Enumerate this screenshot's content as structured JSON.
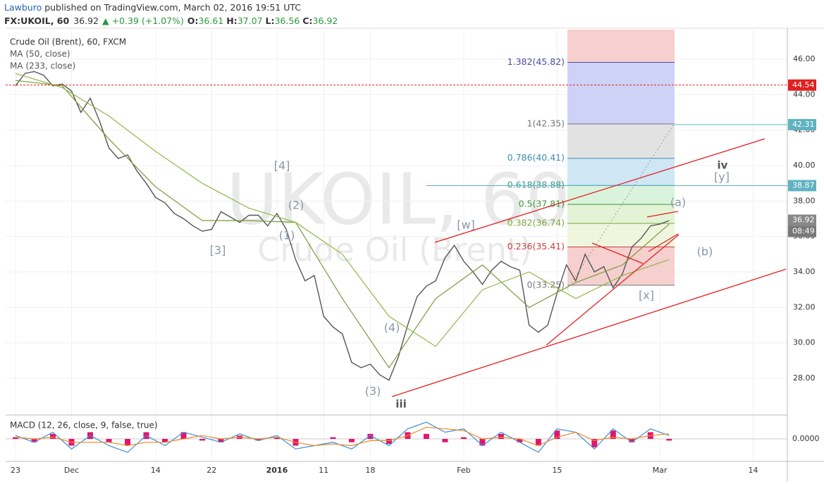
{
  "header": {
    "author": "Lawburo",
    "published": " published on TradingView.com, March 02, 2016 19:51 UTC",
    "symbol": "FX:UKOIL, 60",
    "last": "36.92",
    "change": "▲ +0.39 (+1.07%)",
    "open_label": "O:",
    "open": "36.61",
    "high_label": "H:",
    "high": "37.07",
    "low_label": "L:",
    "low": "36.56",
    "close_label": "C:",
    "close": "36.92"
  },
  "chart_data": [
    {
      "type": "line",
      "title": "Crude Oil (Brent), 60, FXCM",
      "watermark": "UKOIL, 60",
      "watermark_sub": "Crude Oil (Brent)",
      "x": [
        0,
        1,
        2,
        3,
        4,
        5,
        6,
        7,
        8,
        9,
        10,
        11,
        12,
        13,
        14,
        15,
        16,
        17,
        18,
        19,
        20,
        21,
        22,
        23,
        24,
        25,
        26,
        27,
        28,
        29,
        30,
        31,
        32,
        33,
        34,
        35,
        36,
        37,
        38,
        39,
        40,
        41,
        42,
        43,
        44,
        45,
        46,
        47,
        48,
        49,
        50,
        51,
        52,
        53,
        54,
        55,
        56,
        57,
        58,
        59,
        60,
        61,
        62,
        63,
        64,
        65,
        66,
        67,
        68,
        69,
        70
      ],
      "series": [
        {
          "color": "#555555",
          "values": [
            44.5,
            45.2,
            45.3,
            45.1,
            44.5,
            44.6,
            44.2,
            43.0,
            43.8,
            42.5,
            41.0,
            40.4,
            40.6,
            39.7,
            39.0,
            38.2,
            37.9,
            37.3,
            37.0,
            36.6,
            36.3,
            36.4,
            37.4,
            37.1,
            36.8,
            37.2,
            37.2,
            36.6,
            37.3,
            36.4,
            34.7,
            33.5,
            33.8,
            31.5,
            30.9,
            30.5,
            28.9,
            28.6,
            28.8,
            28.2,
            27.9,
            29.2,
            31.0,
            32.6,
            33.2,
            33.5,
            34.8,
            35.5,
            34.6,
            34.0,
            33.3,
            34.1,
            34.6,
            34.3,
            34.1,
            31.0,
            30.6,
            31.0,
            32.8,
            34.4,
            33.5,
            35.0,
            34.0,
            34.3,
            33.1,
            33.9,
            35.4,
            35.9,
            36.6,
            36.7,
            36.9
          ]
        },
        {
          "name": "MA (50, close)",
          "color": "#7a9a3a",
          "x": [
            0,
            5,
            10,
            15,
            20,
            25,
            30,
            35,
            40,
            45,
            50,
            55,
            60,
            65,
            70
          ],
          "values": [
            44.8,
            44.5,
            41.5,
            38.8,
            36.9,
            36.9,
            36.8,
            32.5,
            28.6,
            32.5,
            34.4,
            32.0,
            33.4,
            34.4,
            36.7
          ]
        },
        {
          "name": "MA (233, close)",
          "color": "#8fb848",
          "x": [
            0,
            5,
            10,
            15,
            20,
            25,
            30,
            35,
            40,
            45,
            50,
            55,
            60,
            65,
            70
          ],
          "values": [
            45.2,
            44.4,
            42.8,
            40.8,
            39.0,
            37.6,
            36.8,
            35.0,
            31.5,
            29.8,
            33.0,
            34.0,
            32.5,
            33.8,
            34.7
          ]
        }
      ],
      "xlim": [
        -1.06,
        82.66
      ],
      "xticks": [
        {
          "value": 0,
          "label": "23"
        },
        {
          "value": 6,
          "label": "Dec"
        },
        {
          "value": 15,
          "label": "14"
        },
        {
          "value": 21,
          "label": "22"
        },
        {
          "value": 28,
          "label": "2016"
        },
        {
          "value": 33,
          "label": "11"
        },
        {
          "value": 38,
          "label": "18"
        },
        {
          "value": 48,
          "label": "Feb"
        },
        {
          "value": 58,
          "label": "15"
        },
        {
          "value": 69,
          "label": "Mar"
        },
        {
          "value": 79,
          "label": "14"
        }
      ],
      "ylim": [
        26.77,
        47.67
      ],
      "yticks": [
        {
          "value": 28,
          "label": "28.00"
        },
        {
          "value": 30,
          "label": "30.00"
        },
        {
          "value": 32,
          "label": "32.00"
        },
        {
          "value": 34,
          "label": "34.00"
        },
        {
          "value": 36,
          "label": "36.00"
        },
        {
          "value": 38,
          "label": "38.00"
        },
        {
          "value": 40,
          "label": "40.00"
        },
        {
          "value": 42,
          "label": "42.00"
        },
        {
          "value": 44,
          "label": "44.00"
        },
        {
          "value": 46,
          "label": "46.00"
        }
      ],
      "fib_levels": [
        {
          "value": 45.82,
          "label": "1.382(45.82)",
          "color": "#4a4aaa"
        },
        {
          "value": 42.35,
          "label": "1(42.35)",
          "color": "#777777"
        },
        {
          "value": 40.41,
          "label": "0.786(40.41)",
          "color": "#3d8db5"
        },
        {
          "value": 38.88,
          "label": "0.618(38.88)",
          "color": "#3a9a9a"
        },
        {
          "value": 37.81,
          "label": "0.5(37.81)",
          "color": "#3a9a3a"
        },
        {
          "value": 36.74,
          "label": "0.382(36.74)",
          "color": "#7aa83a"
        },
        {
          "value": 35.41,
          "label": "0.236(35.41)",
          "color": "#c84040"
        },
        {
          "value": 33.25,
          "label": "0(33.25)",
          "color": "#777777"
        }
      ],
      "price_tags": [
        {
          "value": 44.54,
          "color": "#e02020"
        },
        {
          "value": 42.31,
          "color": "#5fb3c0"
        },
        {
          "value": 38.87,
          "color": "#5fb3c0"
        },
        {
          "value": 36.92,
          "color": "#888888"
        }
      ],
      "countdown": "08:49",
      "annotations": [
        "[4]",
        "(2)",
        "(1)",
        "[3]",
        "(4)",
        "(3)",
        "iii",
        "[w]",
        "[x]",
        "(a)",
        "iv",
        "[y]",
        "(b)"
      ]
    },
    {
      "type": "macd",
      "title": "MACD (12, 26, close, 9, false, true)",
      "x": [
        0,
        2,
        4,
        6,
        8,
        10,
        12,
        14,
        16,
        18,
        20,
        22,
        24,
        26,
        28,
        30,
        32,
        34,
        36,
        38,
        40,
        42,
        44,
        46,
        48,
        50,
        52,
        54,
        56,
        58,
        60,
        62,
        64,
        66,
        68,
        70
      ],
      "series": [
        {
          "color": "#3d8fd8",
          "values": [
            0.1,
            -0.1,
            0.2,
            -0.3,
            0.1,
            -0.2,
            -0.4,
            0.1,
            -0.2,
            0.2,
            0.05,
            -0.1,
            0.15,
            -0.05,
            0.1,
            -0.3,
            -0.2,
            -0.1,
            -0.3,
            0.1,
            -0.2,
            0.3,
            0.5,
            0.2,
            0.3,
            -0.2,
            0.2,
            -0.1,
            -0.4,
            0.3,
            0.2,
            -0.3,
            0.3,
            -0.1,
            0.3,
            0.1
          ]
        },
        {
          "color": "#f08a24",
          "values": [
            0.05,
            0,
            0.05,
            -0.1,
            -0.1,
            -0.1,
            -0.2,
            -0.1,
            -0.1,
            0,
            0.1,
            0,
            0.05,
            0,
            0.05,
            -0.1,
            -0.2,
            -0.15,
            -0.2,
            -0.05,
            -0.05,
            0.1,
            0.35,
            0.3,
            0.25,
            0,
            0.05,
            0,
            -0.2,
            0.05,
            0.2,
            -0.05,
            0.05,
            0,
            0.1,
            0.15
          ]
        },
        {
          "color": "#e0166e",
          "values": [
            0.05,
            -0.1,
            0.15,
            -0.2,
            0.2,
            -0.1,
            -0.2,
            0.2,
            -0.1,
            0.2,
            -0.05,
            -0.1,
            0.1,
            -0.05,
            0.05,
            -0.2,
            0,
            0.05,
            -0.1,
            0.15,
            -0.15,
            0.2,
            0.15,
            -0.1,
            0.05,
            -0.2,
            0.15,
            -0.1,
            -0.2,
            0.25,
            0,
            -0.25,
            0.25,
            -0.1,
            0.2,
            -0.05
          ]
        }
      ],
      "xlim": [
        -1.06,
        82.66
      ],
      "ylim": [
        -0.65,
        0.65
      ],
      "yticks": [
        {
          "value": 0,
          "label": "0.0000"
        }
      ]
    }
  ]
}
